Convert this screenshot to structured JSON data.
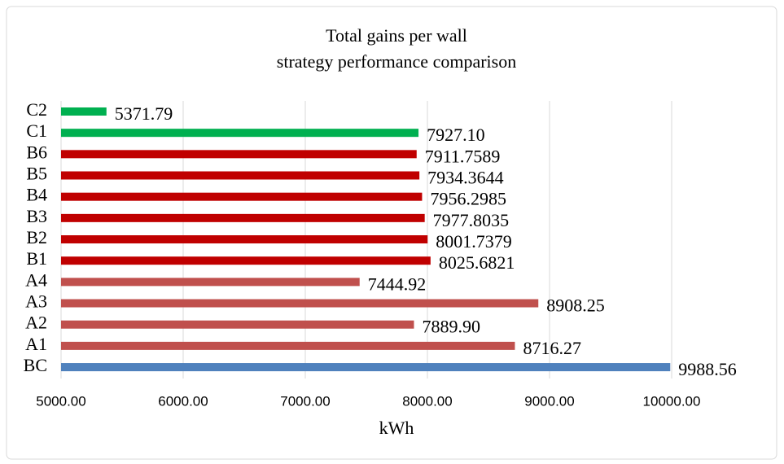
{
  "chart_data": {
    "type": "bar",
    "orientation": "horizontal",
    "title": "Total gains per wall",
    "subtitle": "strategy performance comparison",
    "x_label": "kWh",
    "categories": [
      "C2",
      "C1",
      "B6",
      "B5",
      "B4",
      "B3",
      "B2",
      "B1",
      "A4",
      "A3",
      "A2",
      "A1",
      "BC"
    ],
    "values": [
      5371.79,
      7927.1,
      7911.7589,
      7934.3644,
      7956.2985,
      7977.8035,
      8001.7379,
      8025.6821,
      7444.92,
      8908.25,
      7889.9,
      8716.27,
      9988.56
    ],
    "value_labels": [
      "5371.79",
      "7927.10",
      "7911.7589",
      "7934.3644",
      "7956.2985",
      "7977.8035",
      "8001.7379",
      "8025.6821",
      "7444.92",
      "8908.25",
      "7889.90",
      "8716.27",
      "9988.56"
    ],
    "colors": [
      "#00b050",
      "#00b050",
      "#c00000",
      "#c00000",
      "#c00000",
      "#c00000",
      "#c00000",
      "#c00000",
      "#c0504d",
      "#c0504d",
      "#c0504d",
      "#c0504d",
      "#4f81bd"
    ],
    "xlim": [
      5000,
      10000
    ],
    "xticks": [
      {
        "value": 5000,
        "label": "5000.00"
      },
      {
        "value": 6000,
        "label": "6000.00"
      },
      {
        "value": 7000,
        "label": "7000.00"
      },
      {
        "value": 8000,
        "label": "8000.00"
      },
      {
        "value": 9000,
        "label": "9000.00"
      },
      {
        "value": 10000,
        "label": "10000.00"
      }
    ],
    "grid": true
  }
}
